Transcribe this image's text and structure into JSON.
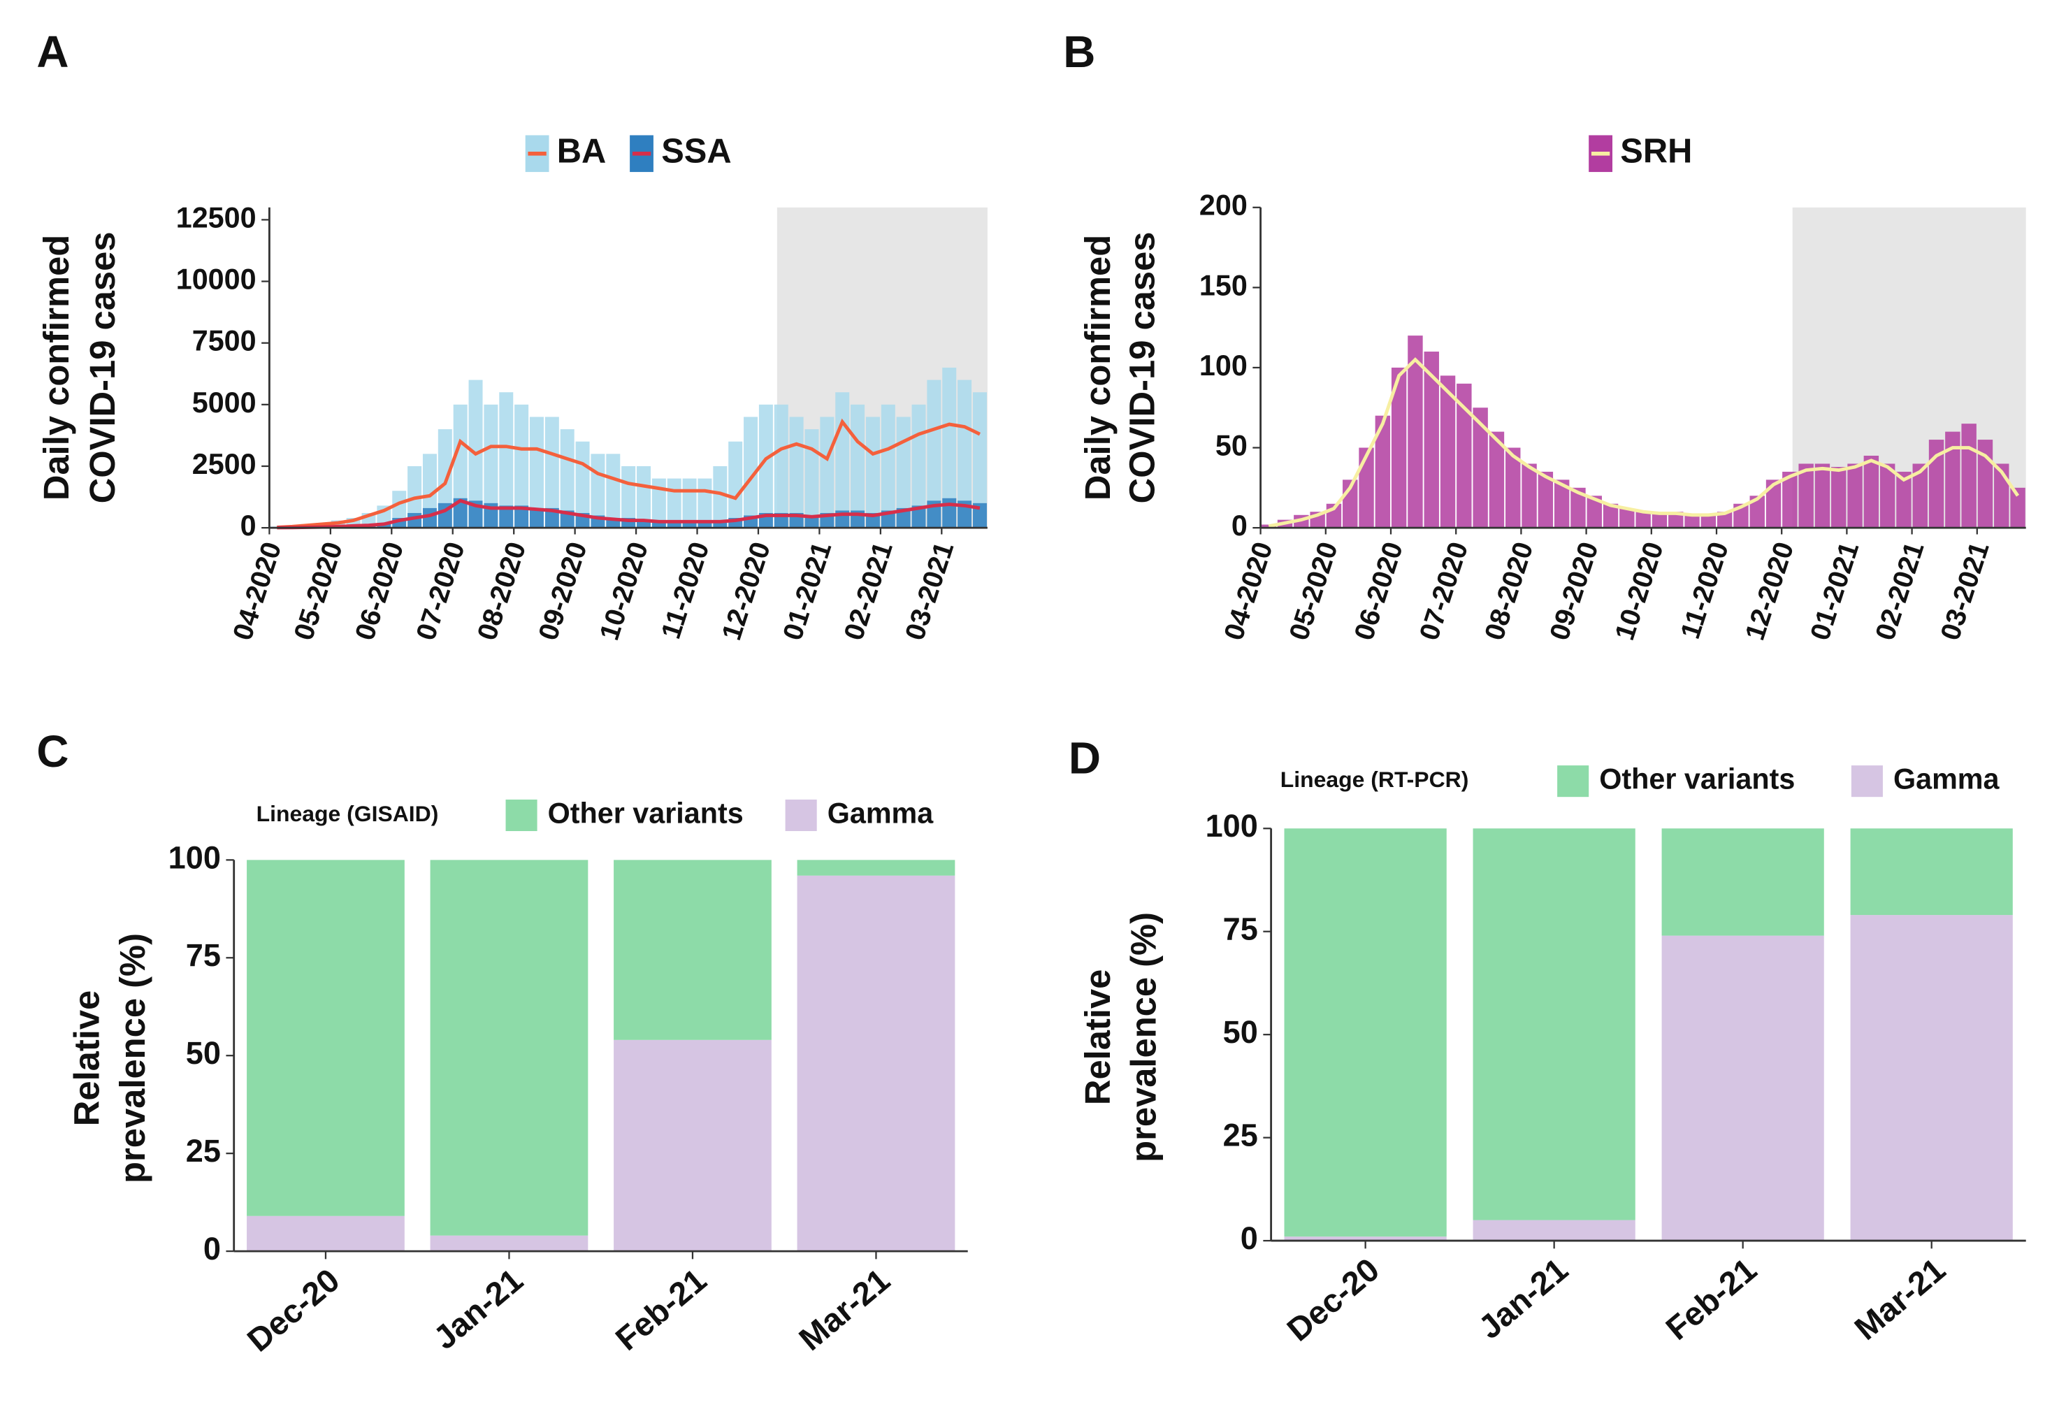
{
  "chart_data": [
    {
      "type": "bar",
      "panel": "A",
      "y_label": [
        "Daily confirmed",
        "COVID-19 cases"
      ],
      "categories": [
        "04-2020",
        null,
        null,
        null,
        "05-2020",
        null,
        null,
        null,
        "06-2020",
        null,
        null,
        null,
        "07-2020",
        null,
        null,
        null,
        "08-2020",
        null,
        null,
        null,
        "09-2020",
        null,
        null,
        null,
        "10-2020",
        null,
        null,
        null,
        "11-2020",
        null,
        null,
        null,
        "12-2020",
        null,
        null,
        null,
        "01-2021",
        null,
        null,
        null,
        "02-2021",
        null,
        null,
        null,
        "03-2021",
        null,
        null
      ],
      "series": [
        {
          "name": "BA",
          "color": "#a9d9ec",
          "line_color": "#f4603c",
          "values": [
            50,
            100,
            150,
            200,
            300,
            400,
            600,
            900,
            1500,
            2500,
            3000,
            4000,
            5000,
            6000,
            5000,
            5500,
            5000,
            4500,
            4500,
            4000,
            3500,
            3000,
            3000,
            2500,
            2500,
            2000,
            2000,
            2000,
            2000,
            2500,
            3500,
            4500,
            5000,
            5000,
            4500,
            4000,
            4500,
            5500,
            5000,
            4500,
            5000,
            4500,
            5000,
            6000,
            6500,
            6000,
            5500
          ],
          "average": [
            20,
            50,
            100,
            150,
            200,
            300,
            500,
            700,
            1000,
            1200,
            1300,
            1800,
            3500,
            3000,
            3300,
            3300,
            3200,
            3200,
            3000,
            2800,
            2600,
            2200,
            2000,
            1800,
            1700,
            1600,
            1500,
            1500,
            1500,
            1400,
            1200,
            2000,
            2800,
            3200,
            3400,
            3200,
            2800,
            4300,
            3500,
            3000,
            3200,
            3500,
            3800,
            4000,
            4200,
            4100,
            3800
          ]
        },
        {
          "name": "SSA",
          "color": "#2f7fc0",
          "line_color": "#d62e4a",
          "values": [
            10,
            20,
            30,
            50,
            80,
            100,
            150,
            200,
            400,
            600,
            800,
            1000,
            1200,
            1100,
            1000,
            900,
            900,
            800,
            800,
            700,
            600,
            500,
            400,
            400,
            300,
            300,
            300,
            300,
            300,
            300,
            400,
            500,
            600,
            600,
            600,
            500,
            600,
            700,
            700,
            600,
            700,
            800,
            900,
            1100,
            1200,
            1100,
            1000
          ],
          "average": [
            5,
            10,
            20,
            30,
            50,
            80,
            100,
            150,
            300,
            400,
            500,
            700,
            1100,
            900,
            800,
            800,
            800,
            750,
            700,
            600,
            500,
            400,
            350,
            300,
            300,
            250,
            250,
            250,
            250,
            250,
            300,
            400,
            500,
            500,
            500,
            450,
            500,
            550,
            550,
            500,
            600,
            700,
            800,
            900,
            950,
            900,
            800
          ]
        }
      ],
      "ylim": [
        0,
        13000
      ],
      "yticks": [
        0,
        2500,
        5000,
        7500,
        10000,
        12500
      ]
    },
    {
      "type": "bar",
      "panel": "B",
      "y_label": [
        "Daily confirmed",
        "COVID-19 cases"
      ],
      "categories": [
        "04-2020",
        null,
        null,
        null,
        "05-2020",
        null,
        null,
        null,
        "06-2020",
        null,
        null,
        null,
        "07-2020",
        null,
        null,
        null,
        "08-2020",
        null,
        null,
        null,
        "09-2020",
        null,
        null,
        null,
        "10-2020",
        null,
        null,
        null,
        "11-2020",
        null,
        null,
        null,
        "12-2020",
        null,
        null,
        null,
        "01-2021",
        null,
        null,
        null,
        "02-2021",
        null,
        null,
        null,
        "03-2021",
        null,
        null
      ],
      "series": [
        {
          "name": "SRH",
          "color": "#b23da0",
          "line_color": "#f7efa2",
          "values": [
            2,
            5,
            8,
            10,
            15,
            30,
            50,
            70,
            100,
            120,
            110,
            95,
            90,
            75,
            60,
            50,
            40,
            35,
            30,
            25,
            20,
            15,
            12,
            10,
            10,
            10,
            8,
            8,
            10,
            15,
            20,
            30,
            35,
            40,
            40,
            38,
            40,
            45,
            40,
            35,
            40,
            55,
            60,
            65,
            55,
            40,
            25
          ],
          "average": [
            1,
            3,
            5,
            8,
            12,
            25,
            45,
            65,
            95,
            105,
            95,
            85,
            75,
            65,
            55,
            45,
            38,
            32,
            27,
            22,
            18,
            14,
            12,
            10,
            9,
            9,
            8,
            8,
            9,
            13,
            18,
            27,
            32,
            36,
            37,
            36,
            38,
            42,
            38,
            30,
            35,
            45,
            50,
            50,
            45,
            35,
            20
          ]
        }
      ],
      "ylim": [
        0,
        200
      ],
      "yticks": [
        0,
        50,
        100,
        150,
        200
      ]
    },
    {
      "type": "stacked_bar",
      "panel": "C",
      "y_label": [
        "Relative",
        "prevalence (%)"
      ],
      "legend_title": "Lineage (GISAID)",
      "categories": [
        "Dec-20",
        "Jan-21",
        "Feb-21",
        "Mar-21"
      ],
      "series": [
        {
          "name": "Other variants",
          "color": "#8ddba8",
          "values": [
            91,
            96,
            46,
            4
          ]
        },
        {
          "name": "Gamma",
          "color": "#d6c5e3",
          "values": [
            9,
            4,
            54,
            96
          ]
        }
      ],
      "ylim": [
        0,
        100
      ],
      "yticks": [
        0,
        25,
        50,
        75,
        100
      ]
    },
    {
      "type": "stacked_bar",
      "panel": "D",
      "y_label": [
        "Relative",
        "prevalence (%)"
      ],
      "legend_title": "Lineage (RT-PCR)",
      "categories": [
        "Dec-20",
        "Jan-21",
        "Feb-21",
        "Mar-21"
      ],
      "series": [
        {
          "name": "Other variants",
          "color": "#8ddba8",
          "values": [
            99,
            95,
            26,
            21
          ]
        },
        {
          "name": "Gamma",
          "color": "#d6c5e3",
          "values": [
            1,
            5,
            74,
            79
          ]
        }
      ],
      "ylim": [
        0,
        100
      ],
      "yticks": [
        0,
        25,
        50,
        75,
        100
      ]
    }
  ]
}
